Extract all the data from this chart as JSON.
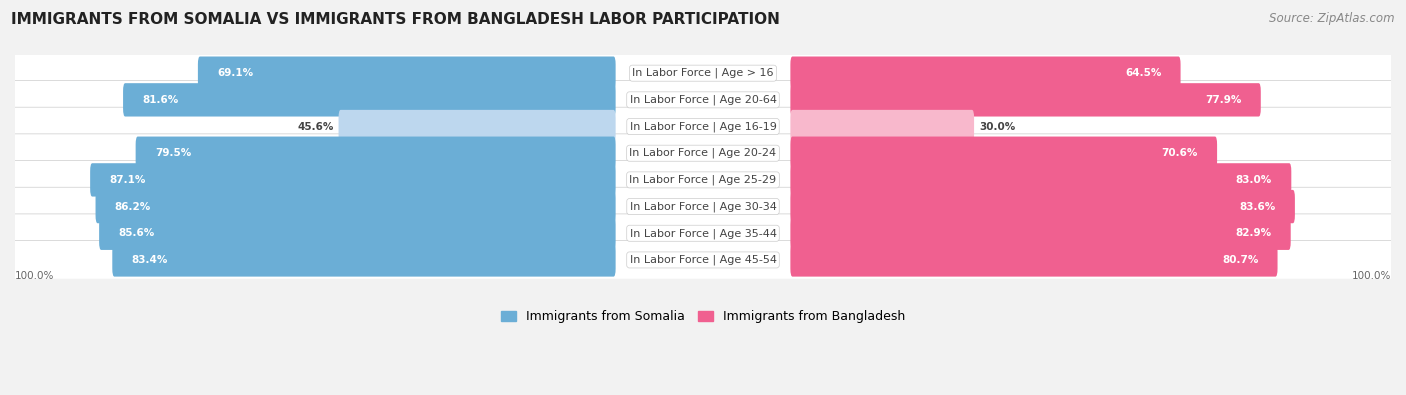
{
  "title": "IMMIGRANTS FROM SOMALIA VS IMMIGRANTS FROM BANGLADESH LABOR PARTICIPATION",
  "source": "Source: ZipAtlas.com",
  "categories": [
    "In Labor Force | Age > 16",
    "In Labor Force | Age 20-64",
    "In Labor Force | Age 16-19",
    "In Labor Force | Age 20-24",
    "In Labor Force | Age 25-29",
    "In Labor Force | Age 30-34",
    "In Labor Force | Age 35-44",
    "In Labor Force | Age 45-54"
  ],
  "somalia_values": [
    69.1,
    81.6,
    45.6,
    79.5,
    87.1,
    86.2,
    85.6,
    83.4
  ],
  "bangladesh_values": [
    64.5,
    77.9,
    30.0,
    70.6,
    83.0,
    83.6,
    82.9,
    80.7
  ],
  "somalia_color": "#6BAED6",
  "somalia_color_light": "#BDD7EE",
  "bangladesh_color": "#F06090",
  "bangladesh_color_light": "#F8B8CC",
  "row_bg_color": "#E8E8E8",
  "background_color": "#F2F2F2",
  "title_fontsize": 11,
  "source_fontsize": 8.5,
  "label_fontsize": 8,
  "value_fontsize": 7.5,
  "legend_fontsize": 9,
  "max_value": 100.0,
  "somalia_threshold": 60,
  "bangladesh_threshold": 50
}
